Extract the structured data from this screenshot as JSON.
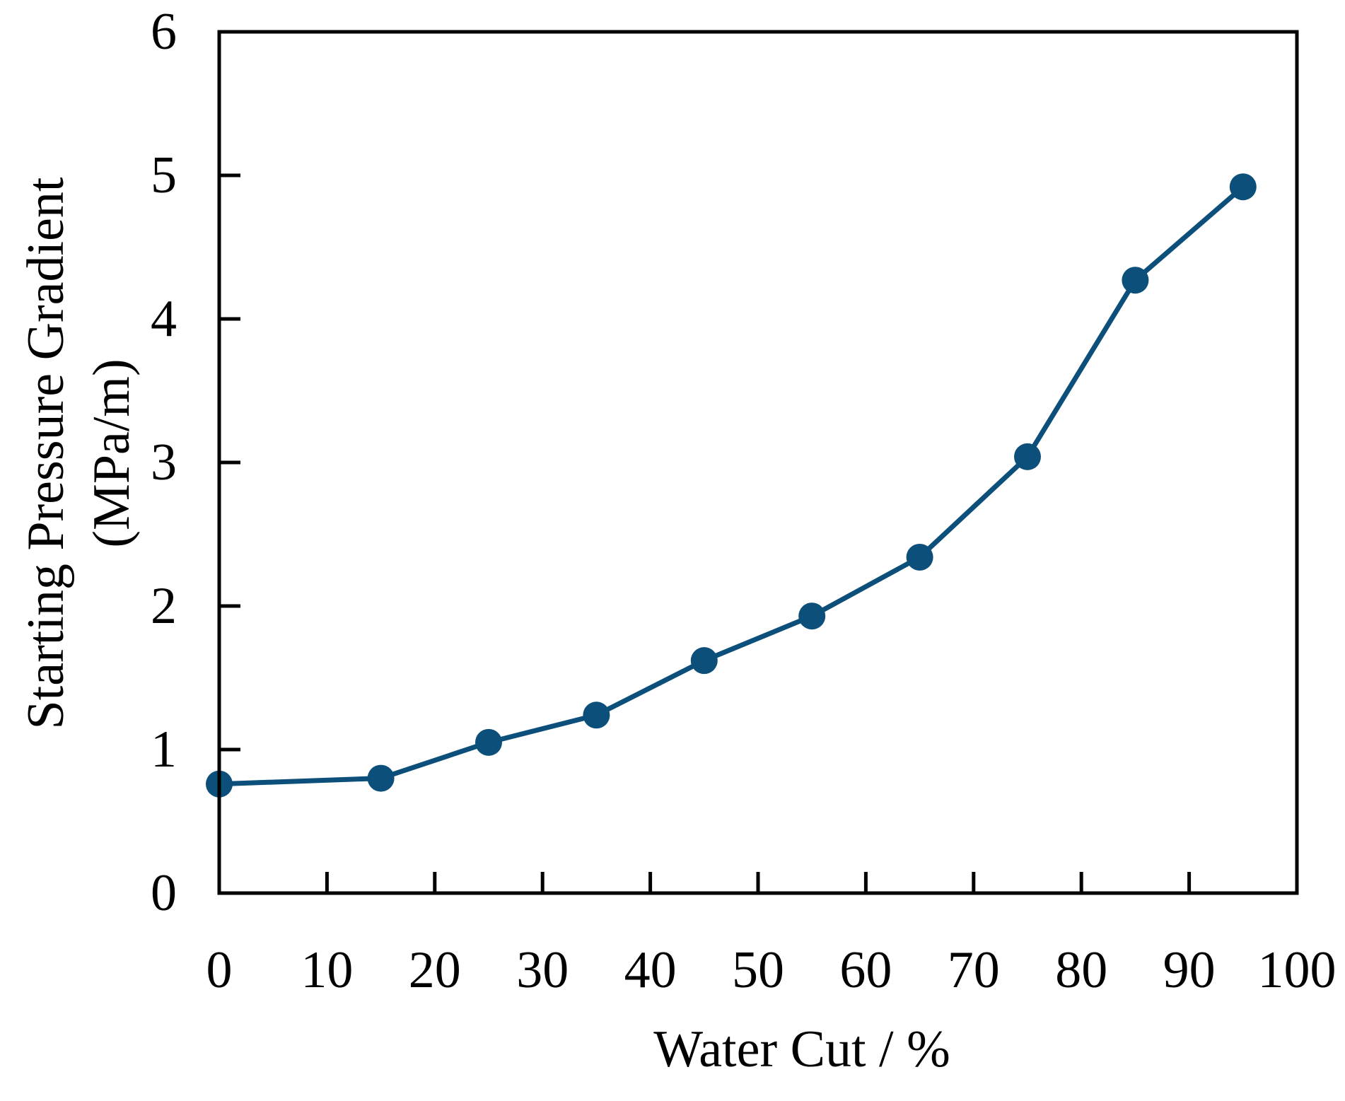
{
  "chart_data": {
    "type": "line",
    "xlabel": "Water Cut / %",
    "ylabel_line1": "Starting Pressure Gradient",
    "ylabel_line2": "(MPa/m)",
    "xlim": [
      0,
      100
    ],
    "ylim": [
      0,
      6
    ],
    "xticks": [
      0,
      10,
      20,
      30,
      40,
      50,
      60,
      70,
      80,
      90,
      100
    ],
    "yticks": [
      0,
      1,
      2,
      3,
      4,
      5,
      6
    ],
    "grid": false,
    "series": [
      {
        "x": [
          0,
          15,
          25,
          35,
          45,
          55,
          65,
          75,
          85,
          95
        ],
        "y": [
          0.76,
          0.8,
          1.05,
          1.24,
          1.62,
          1.93,
          2.34,
          3.04,
          4.27,
          4.92
        ],
        "color": "#0b4f7a",
        "marker": "circle"
      }
    ]
  }
}
